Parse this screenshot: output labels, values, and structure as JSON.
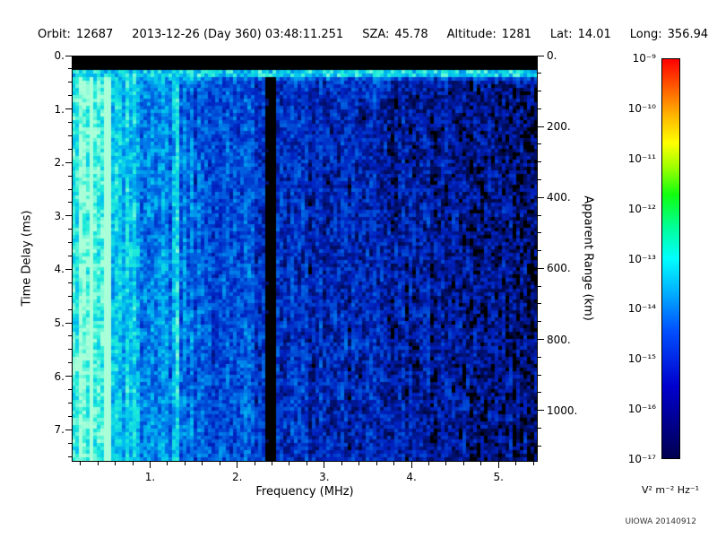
{
  "header": {
    "segments": [
      {
        "label": "Orbit:",
        "value": "12687"
      },
      {
        "label": "",
        "value": "2013-12-26 (Day 360) 03:48:11.251"
      },
      {
        "label": "SZA:",
        "value": "45.78"
      },
      {
        "label": "Altitude:",
        "value": "1281"
      },
      {
        "label": "Lat:",
        "value": "14.01"
      },
      {
        "label": "Long:",
        "value": "356.94"
      }
    ]
  },
  "chart_data": {
    "type": "heatmap",
    "title": "",
    "xlabel": "Frequency (MHz)",
    "ylabel_left": "Time Delay (ms)",
    "ylabel_right": "Apparent Range (km)",
    "x_range_mhz": [
      0.1,
      5.45
    ],
    "y_range_ms": [
      0,
      7.6
    ],
    "y_range_km": [
      0,
      1145
    ],
    "x_ticks": [
      {
        "label": "1.",
        "value": 1
      },
      {
        "label": "2.",
        "value": 2
      },
      {
        "label": "3.",
        "value": 3
      },
      {
        "label": "4.",
        "value": 4
      },
      {
        "label": "5.",
        "value": 5
      }
    ],
    "x_minor_step": 0.2,
    "y_left_ticks": [
      {
        "label": "0.",
        "value": 0
      },
      {
        "label": "1.",
        "value": 1
      },
      {
        "label": "2.",
        "value": 2
      },
      {
        "label": "3.",
        "value": 3
      },
      {
        "label": "4.",
        "value": 4
      },
      {
        "label": "5.",
        "value": 5
      },
      {
        "label": "6.",
        "value": 6
      },
      {
        "label": "7.",
        "value": 7
      }
    ],
    "y_left_minor_step": 0.25,
    "y_right_ticks": [
      {
        "label": "0.",
        "value": 0
      },
      {
        "label": "200.",
        "value": 200
      },
      {
        "label": "400.",
        "value": 400
      },
      {
        "label": "600.",
        "value": 600
      },
      {
        "label": "800.",
        "value": 800
      },
      {
        "label": "1000.",
        "value": 1000
      }
    ],
    "y_right_minor_step": 50,
    "colorbar": {
      "units": "V² m⁻² Hz⁻¹",
      "scale": "log",
      "range_min": "1e-17",
      "range_max": "1e-9",
      "tick_labels": [
        "10⁻⁹",
        "10⁻¹⁰",
        "10⁻¹¹",
        "10⁻¹²",
        "10⁻¹³",
        "10⁻¹⁴",
        "10⁻¹⁵",
        "10⁻¹⁶",
        "10⁻¹⁷"
      ],
      "gradient": [
        {
          "pos": 0.0,
          "color": "#000050"
        },
        {
          "pos": 0.18,
          "color": "#0000cd"
        },
        {
          "pos": 0.32,
          "color": "#0050ff"
        },
        {
          "pos": 0.42,
          "color": "#00b4ff"
        },
        {
          "pos": 0.5,
          "color": "#00ffff"
        },
        {
          "pos": 0.58,
          "color": "#00ff96"
        },
        {
          "pos": 0.66,
          "color": "#10ff10"
        },
        {
          "pos": 0.73,
          "color": "#a0ff00"
        },
        {
          "pos": 0.79,
          "color": "#ffff00"
        },
        {
          "pos": 0.86,
          "color": "#ffb400"
        },
        {
          "pos": 0.93,
          "color": "#ff5a00"
        },
        {
          "pos": 1.0,
          "color": "#ff0000"
        }
      ]
    },
    "heatmap_render": {
      "intensity_profile": [
        [
          0.1,
          0.97
        ],
        [
          0.3,
          0.9
        ],
        [
          0.6,
          0.78
        ],
        [
          0.9,
          0.6
        ],
        [
          1.3,
          0.52
        ],
        [
          1.8,
          0.45
        ],
        [
          2.3,
          0.38
        ],
        [
          3.0,
          0.3
        ],
        [
          3.8,
          0.26
        ],
        [
          4.5,
          0.22
        ],
        [
          5.45,
          0.18
        ]
      ],
      "features": {
        "top_black_band_ms": 0.25,
        "surface_line_ms": 0.38,
        "black_column_mhz": [
          2.33,
          2.44
        ],
        "bright_columns_mhz": [
          0.33,
          0.52,
          1.3
        ],
        "noise_amplitude": 0.44,
        "black_threshold": 0.09
      },
      "colormap": [
        {
          "v": 0.09,
          "c": "#00063a"
        },
        {
          "v": 0.28,
          "c": "#0020c0"
        },
        {
          "v": 0.5,
          "c": "#0070e8"
        },
        {
          "v": 0.68,
          "c": "#00c0f0"
        },
        {
          "v": 0.84,
          "c": "#20eed8"
        },
        {
          "v": 1.0,
          "c": "#a8ffd8"
        }
      ],
      "seed": 1337
    }
  },
  "credit": "UIOWA 20140912"
}
